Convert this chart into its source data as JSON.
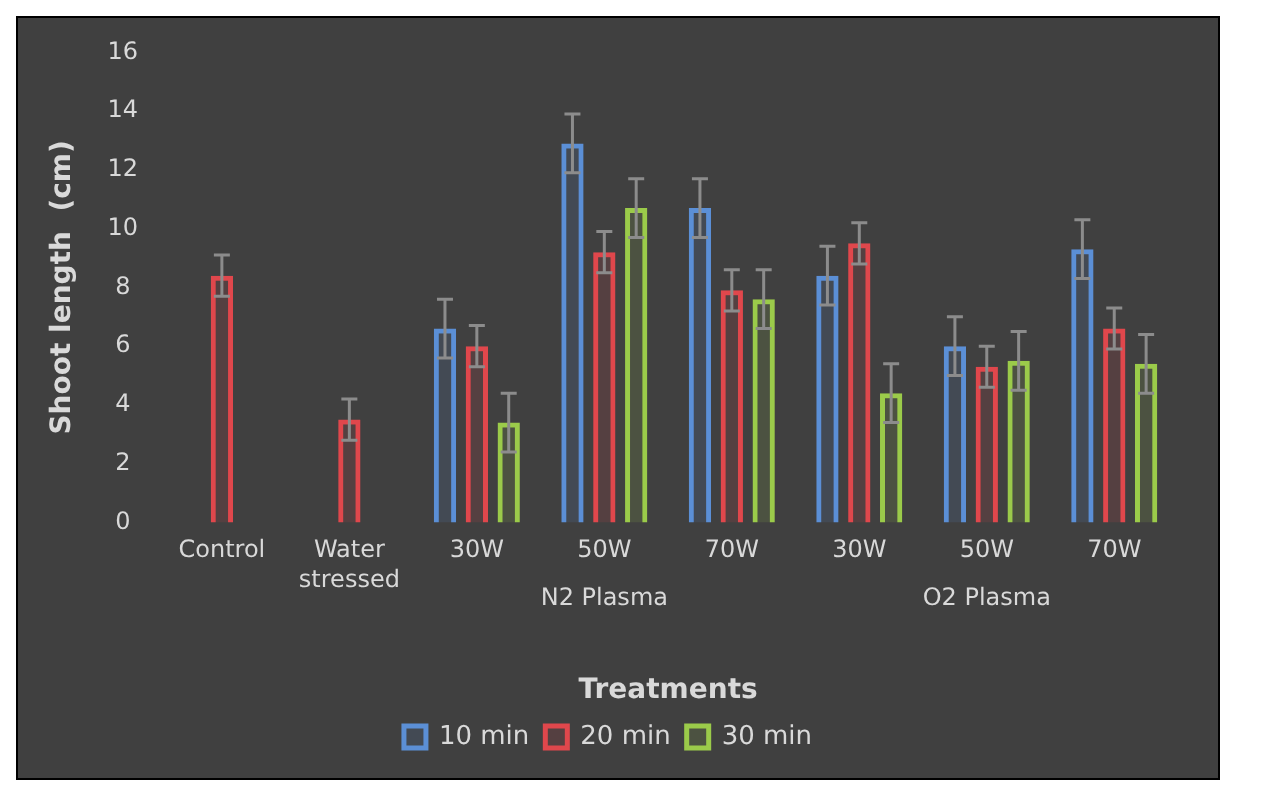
{
  "chart_data": {
    "type": "bar",
    "xlabel": "Treatments",
    "ylabel": "Shoot length  (cm)",
    "categories": [
      "Control",
      "Water stressed",
      "30W",
      "50W",
      "70W",
      "30W",
      "50W",
      "70W"
    ],
    "annotations": [
      "N2 Plasma",
      "O2 Plasma"
    ],
    "series": [
      {
        "name": "10 min",
        "color": "#5b8fd6",
        "values": [
          null,
          null,
          6.6,
          12.9,
          10.7,
          8.4,
          6.0,
          9.3
        ],
        "errors": [
          null,
          null,
          1.0,
          1.0,
          1.0,
          1.0,
          1.0,
          1.0
        ]
      },
      {
        "name": "20 min",
        "color": "#e0474c",
        "values": [
          8.4,
          3.5,
          6.0,
          9.2,
          7.9,
          9.5,
          5.3,
          6.6
        ],
        "errors": [
          0.7,
          0.7,
          0.7,
          0.7,
          0.7,
          0.7,
          0.7,
          0.7
        ]
      },
      {
        "name": "30 min",
        "color": "#9bcb4a",
        "values": [
          null,
          null,
          3.4,
          10.7,
          7.6,
          4.4,
          5.5,
          5.4
        ],
        "errors": [
          null,
          null,
          1.0,
          1.0,
          1.0,
          1.0,
          1.0,
          1.0
        ]
      }
    ],
    "ylim": [
      0,
      16
    ],
    "yticks": [
      0,
      2,
      4,
      6,
      8,
      10,
      12,
      14,
      16
    ],
    "grid": false,
    "legend": "bottom"
  }
}
